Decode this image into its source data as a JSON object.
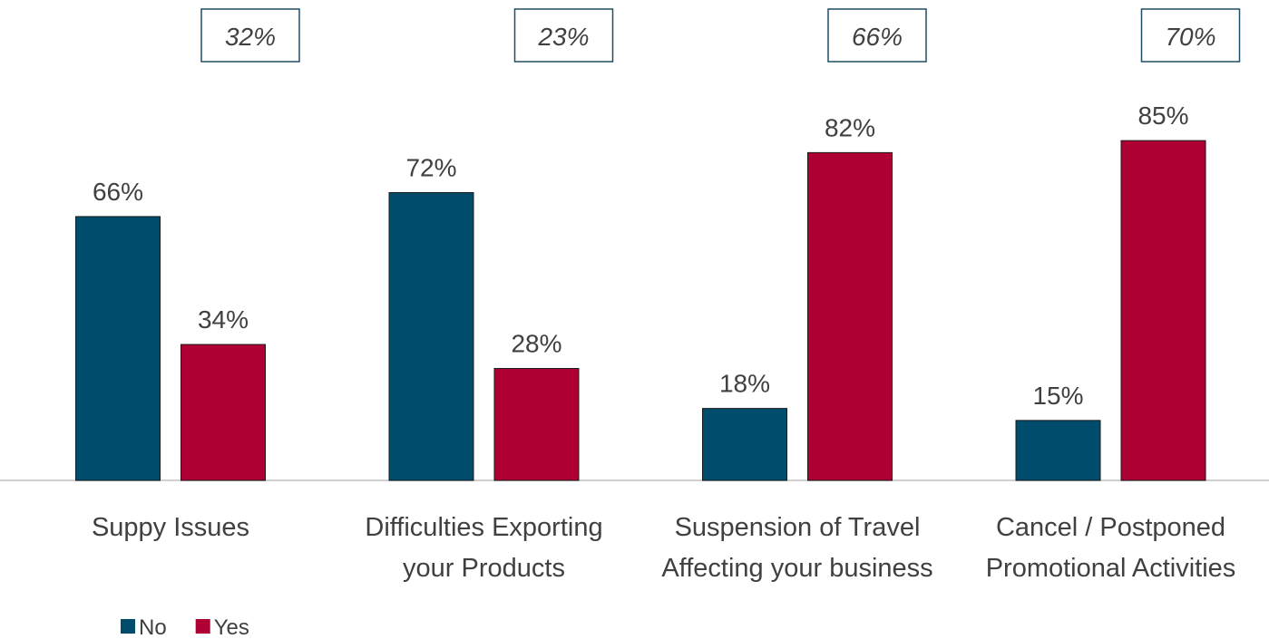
{
  "chart_data": {
    "type": "bar",
    "categories": [
      "Suppy Issues",
      "Difficulties Exporting your Products",
      "Suspension of Travel Affecting your business",
      "Cancel / Postponed Promotional Activities"
    ],
    "series": [
      {
        "name": "No",
        "color": "#004c6d",
        "values": [
          66,
          72,
          18,
          15
        ],
        "value_labels": [
          "66%",
          "72%",
          "18%",
          "15%"
        ]
      },
      {
        "name": "Yes",
        "color": "#ae0032",
        "values": [
          34,
          28,
          82,
          85
        ],
        "value_labels": [
          "34%",
          "28%",
          "82%",
          "85%"
        ]
      }
    ],
    "annotations": [
      "32%",
      "23%",
      "66%",
      "70%"
    ],
    "legend": "bottom-left"
  }
}
